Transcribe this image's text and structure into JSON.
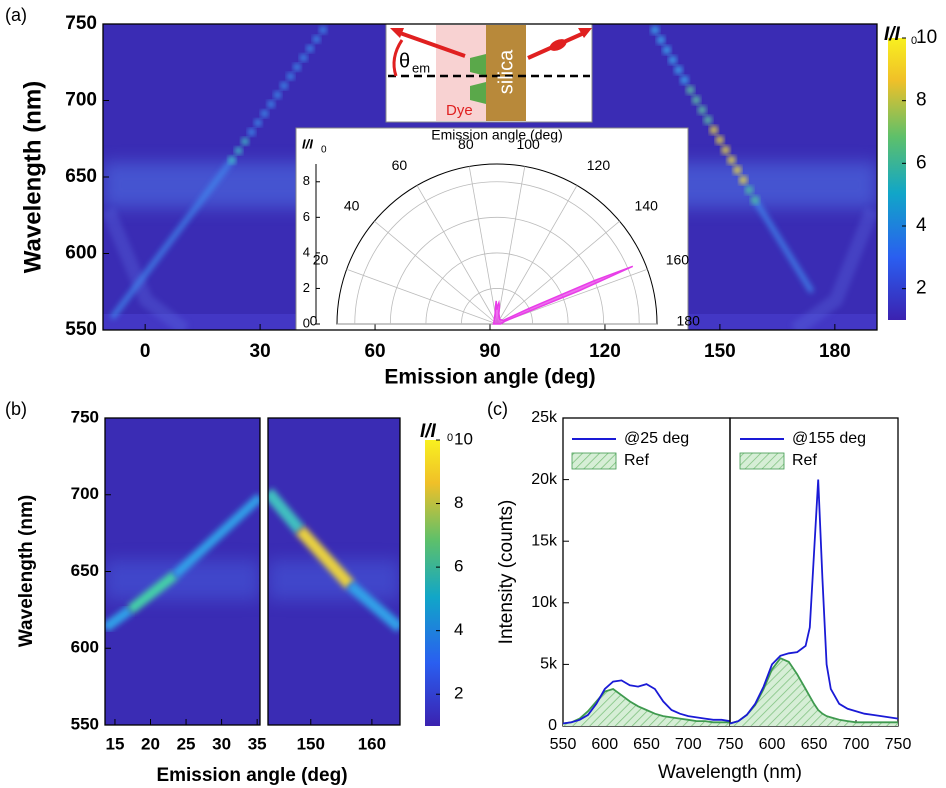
{
  "diagram": {
    "theta": "θ",
    "theta_sub": "em",
    "silica": "silica",
    "dye": "Dye"
  },
  "chart_data": [
    {
      "type": "heatmap",
      "panel_label": "(a)",
      "xlabel": "Emission angle (deg)",
      "ylabel": "Wavelength (nm)",
      "xlim": [
        -11,
        191
      ],
      "xticks": [
        0,
        30,
        60,
        90,
        120,
        150,
        180
      ],
      "ylim": [
        550,
        750
      ],
      "yticks": [
        550,
        600,
        650,
        700,
        750
      ],
      "colorbar": {
        "label": "I/I",
        "label_sub": "0",
        "clim": [
          1,
          10
        ],
        "ticks": [
          2,
          4,
          6,
          8,
          10
        ]
      }
    },
    {
      "type": "polar",
      "title": "Emission angle (deg)",
      "rlabel": "I/I",
      "rlabel_sub": "0",
      "thetaticks": [
        0,
        20,
        40,
        60,
        80,
        100,
        120,
        140,
        160,
        180
      ],
      "rlim": [
        0,
        9
      ],
      "rticks": [
        0,
        2,
        4,
        6,
        8
      ],
      "theta": [
        0,
        30,
        60,
        80,
        85,
        88,
        90,
        92,
        95,
        98,
        100,
        120,
        150,
        154,
        156,
        157,
        158,
        160,
        180
      ],
      "r": [
        0.2,
        0.2,
        0.3,
        0.6,
        1,
        1.3,
        0.8,
        1,
        1.2,
        1,
        0.6,
        0.3,
        0.4,
        2,
        6,
        8.3,
        5,
        0.5,
        0.2
      ],
      "color": "#e83de8"
    },
    {
      "type": "heatmap",
      "panel_label": "(b)",
      "ylabel": "Wavelength (nm)",
      "xlim": [
        13.6,
        35.4
      ],
      "xticks": [
        15,
        20,
        25,
        30,
        35
      ],
      "ylim": [
        550,
        750
      ],
      "yticks": [
        550,
        600,
        650,
        700,
        750
      ]
    },
    {
      "type": "heatmap",
      "xlabel": "Emission angle (deg)",
      "xlim": [
        143,
        164.6
      ],
      "xticks": [
        150,
        160
      ],
      "ylim": [
        550,
        750
      ],
      "colorbar": {
        "label": "I/I",
        "label_sub": "0",
        "clim": [
          1,
          10
        ],
        "ticks": [
          2,
          4,
          6,
          8,
          10
        ]
      }
    },
    {
      "type": "line",
      "panel_label": "(c)",
      "ylabel": "Intensity (counts)",
      "xlim": [
        550,
        750
      ],
      "xticks": [
        550,
        600,
        650,
        700,
        750
      ],
      "ylim": [
        0,
        25000
      ],
      "yticks": [
        0,
        {
          "value": 5000,
          "label": "5k"
        },
        {
          "value": 10000,
          "label": "10k"
        },
        {
          "value": 15000,
          "label": "15k"
        },
        {
          "value": 20000,
          "label": "20k"
        },
        {
          "value": 25000,
          "label": "25k"
        }
      ],
      "x": [
        550,
        560,
        570,
        580,
        590,
        600,
        610,
        620,
        630,
        640,
        650,
        660,
        670,
        680,
        690,
        700,
        710,
        720,
        730,
        740,
        750
      ],
      "series": [
        {
          "name": "@25 deg",
          "color": "#1a1ad6",
          "style": "line",
          "values": [
            200,
            300,
            500,
            900,
            1800,
            3000,
            3600,
            3700,
            3300,
            3200,
            3400,
            3000,
            2000,
            1300,
            1000,
            800,
            700,
            600,
            500,
            500,
            400
          ]
        },
        {
          "name": "Ref",
          "color": "#3f9a4f",
          "style": "hatched-area",
          "values": [
            200,
            300,
            600,
            1200,
            2000,
            2800,
            3000,
            2500,
            2000,
            1600,
            1300,
            1000,
            800,
            700,
            600,
            500,
            400,
            400,
            300,
            300,
            300
          ]
        }
      ]
    },
    {
      "type": "line",
      "xlabel": "Wavelength (nm)",
      "xlim": [
        550,
        750
      ],
      "xticks": [
        600,
        650,
        700,
        750
      ],
      "ylim": [
        0,
        25000
      ],
      "x": [
        550,
        560,
        570,
        580,
        590,
        600,
        610,
        620,
        630,
        640,
        645,
        650,
        655,
        660,
        665,
        670,
        680,
        690,
        700,
        710,
        720,
        730,
        740,
        750
      ],
      "series": [
        {
          "name": "@155 deg",
          "color": "#1a1ad6",
          "style": "line",
          "values": [
            200,
            400,
            900,
            1800,
            3200,
            5000,
            5700,
            5900,
            6000,
            6500,
            8000,
            14000,
            20000,
            12000,
            5000,
            3000,
            1800,
            1400,
            1200,
            1000,
            900,
            800,
            700,
            600
          ]
        },
        {
          "name": "Ref",
          "color": "#3f9a4f",
          "style": "hatched-area",
          "values": [
            200,
            400,
            900,
            1700,
            3000,
            4600,
            5500,
            5200,
            4200,
            3000,
            2400,
            1800,
            1300,
            1000,
            800,
            700,
            500,
            400,
            300,
            300,
            300,
            300,
            300,
            300
          ]
        }
      ]
    }
  ]
}
